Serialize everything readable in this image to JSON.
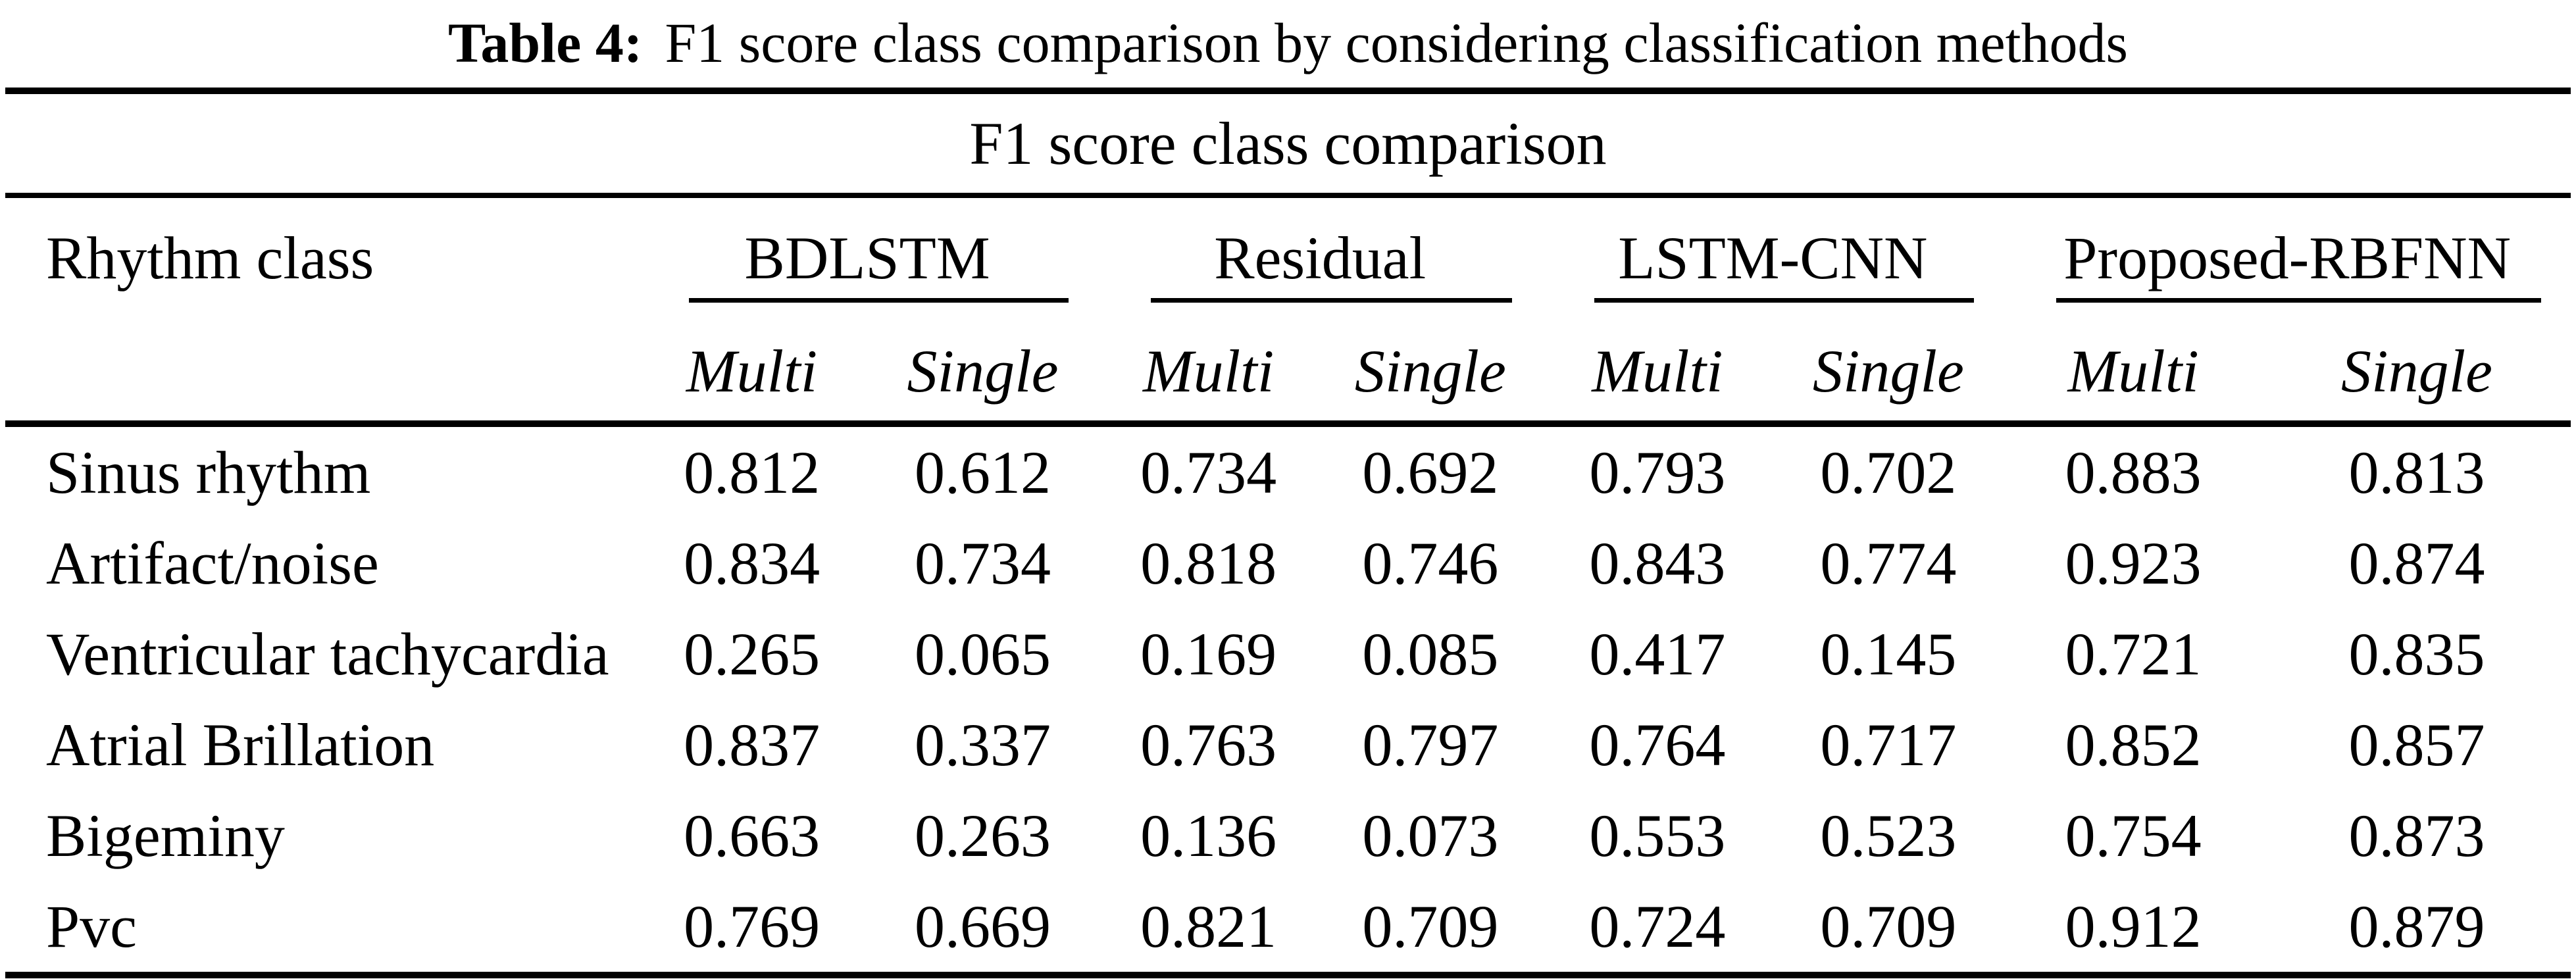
{
  "caption": {
    "label": "Table 4:",
    "text": "F1 score class comparison by considering classification methods"
  },
  "table": {
    "span_header": "F1 score class comparison",
    "row_header": "Rhythm class",
    "groups": [
      {
        "label": "BDLSTM",
        "sub": [
          "Multi",
          "Single"
        ]
      },
      {
        "label": "Residual",
        "sub": [
          "Multi",
          "Single"
        ]
      },
      {
        "label": "LSTM-CNN",
        "sub": [
          "Multi",
          "Single"
        ]
      },
      {
        "label": "Proposed-RBFNN",
        "sub": [
          "Multi",
          "Single"
        ]
      }
    ],
    "rows": [
      {
        "class": "Sinus rhythm",
        "values": [
          "0.812",
          "0.612",
          "0.734",
          "0.692",
          "0.793",
          "0.702",
          "0.883",
          "0.813"
        ]
      },
      {
        "class": "Artifact/noise",
        "values": [
          "0.834",
          "0.734",
          "0.818",
          "0.746",
          "0.843",
          "0.774",
          "0.923",
          "0.874"
        ]
      },
      {
        "class": "Ventricular tachycardia",
        "values": [
          "0.265",
          "0.065",
          "0.169",
          "0.085",
          "0.417",
          "0.145",
          "0.721",
          "0.835"
        ]
      },
      {
        "class": "Atrial Brillation",
        "values": [
          "0.837",
          "0.337",
          "0.763",
          "0.797",
          "0.764",
          "0.717",
          "0.852",
          "0.857"
        ]
      },
      {
        "class": "Bigeminy",
        "values": [
          "0.663",
          "0.263",
          "0.136",
          "0.073",
          "0.553",
          "0.523",
          "0.754",
          "0.873"
        ]
      },
      {
        "class": "Pvc",
        "values": [
          "0.769",
          "0.669",
          "0.821",
          "0.709",
          "0.724",
          "0.709",
          "0.912",
          "0.879"
        ]
      }
    ]
  },
  "colors": {
    "text": "#000000",
    "background": "#ffffff",
    "rule": "#000000"
  },
  "chart_data": {
    "type": "table",
    "title": "Table 4: F1 score class comparison by considering classification methods",
    "span_header": "F1 score class comparison",
    "column_groups": [
      "BDLSTM",
      "Residual",
      "LSTM-CNN",
      "Proposed-RBFNN"
    ],
    "sub_columns": [
      "Multi",
      "Single"
    ],
    "categories": [
      "Sinus rhythm",
      "Artifact/noise",
      "Ventricular tachycardia",
      "Atrial Brillation",
      "Bigeminy",
      "Pvc"
    ],
    "series": [
      {
        "name": "BDLSTM Multi",
        "values": [
          0.812,
          0.834,
          0.265,
          0.837,
          0.663,
          0.769
        ]
      },
      {
        "name": "BDLSTM Single",
        "values": [
          0.612,
          0.734,
          0.065,
          0.337,
          0.263,
          0.669
        ]
      },
      {
        "name": "Residual Multi",
        "values": [
          0.734,
          0.818,
          0.169,
          0.763,
          0.136,
          0.821
        ]
      },
      {
        "name": "Residual Single",
        "values": [
          0.692,
          0.746,
          0.085,
          0.797,
          0.073,
          0.709
        ]
      },
      {
        "name": "LSTM-CNN Multi",
        "values": [
          0.793,
          0.843,
          0.417,
          0.764,
          0.553,
          0.724
        ]
      },
      {
        "name": "LSTM-CNN Single",
        "values": [
          0.702,
          0.774,
          0.145,
          0.717,
          0.523,
          0.709
        ]
      },
      {
        "name": "Proposed-RBFNN Multi",
        "values": [
          0.883,
          0.923,
          0.721,
          0.852,
          0.754,
          0.912
        ]
      },
      {
        "name": "Proposed-RBFNN Single",
        "values": [
          0.813,
          0.874,
          0.835,
          0.857,
          0.873,
          0.879
        ]
      }
    ]
  }
}
